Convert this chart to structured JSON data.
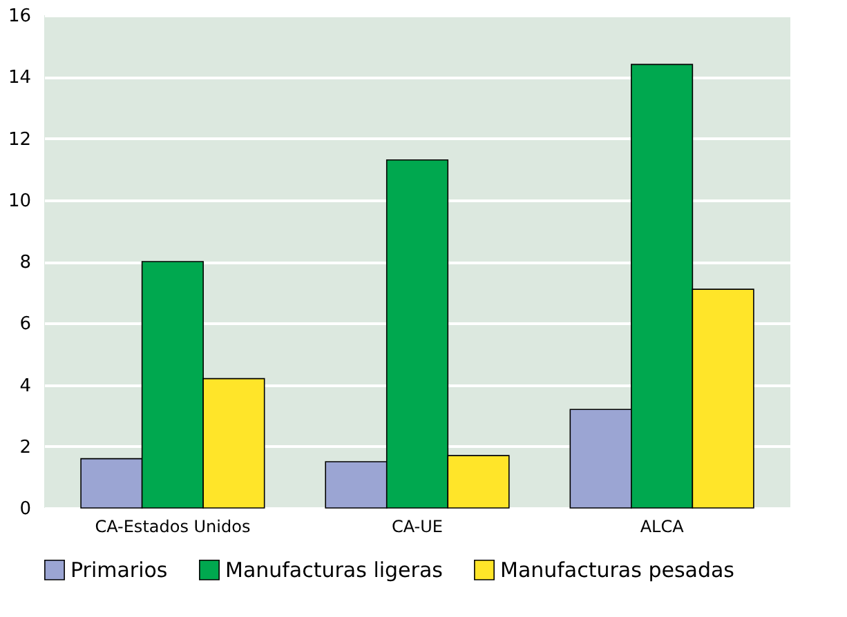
{
  "chart_data": {
    "type": "bar",
    "categories": [
      "CA-Estados Unidos",
      "CA-UE",
      "ALCA"
    ],
    "series": [
      {
        "name": "Primarios",
        "color": "#9ba5d3",
        "values": [
          1.6,
          1.5,
          3.2
        ]
      },
      {
        "name": "Manufacturas ligeras",
        "color": "#00a84f",
        "values": [
          8.0,
          11.3,
          14.4
        ]
      },
      {
        "name": "Manufacturas pesadas",
        "color": "#ffe529",
        "values": [
          4.2,
          1.7,
          7.1
        ]
      }
    ],
    "ylim": [
      0,
      16
    ],
    "yticks": [
      0,
      2,
      4,
      6,
      8,
      10,
      12,
      14,
      16
    ],
    "grid": "y",
    "legend": "bottom"
  }
}
